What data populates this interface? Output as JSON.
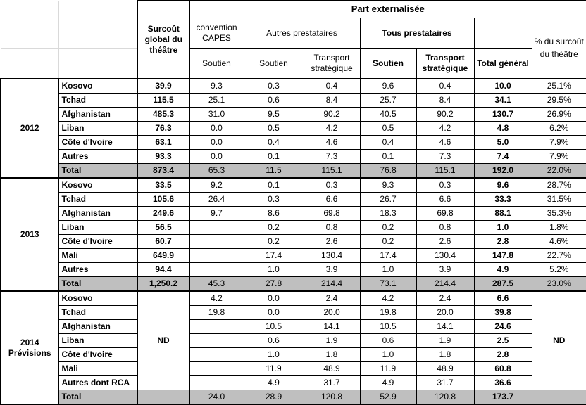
{
  "colors": {
    "total_row_bg": "#bfbfbf",
    "border_black": "#000000",
    "grid_light": "#d9d9d9"
  },
  "header": {
    "part_externalisee": "Part externalisée",
    "surcout_global": "Surcoût global du théâtre",
    "convention_capes": "convention CAPES",
    "autres_prestataires": "Autres prestataires",
    "tous_prestataires": "Tous prestataires",
    "soutien_capes": "Soutien",
    "soutien_autres": "Soutien",
    "transport_autres": "Transport stratégique",
    "soutien_tous": "Soutien",
    "transport_tous": "Transport stratégique",
    "total_general": "Total général",
    "pct_surcout": "% du surcoût du théâtre"
  },
  "blocks": [
    {
      "year": "2012",
      "rows": [
        {
          "label": "Kosovo",
          "cells": [
            "39.9",
            "9.3",
            "0.3",
            "0.4",
            "9.6",
            "0.4",
            "10.0",
            "25.1%"
          ]
        },
        {
          "label": "Tchad",
          "cells": [
            "115.5",
            "25.1",
            "0.6",
            "8.4",
            "25.7",
            "8.4",
            "34.1",
            "29.5%"
          ]
        },
        {
          "label": "Afghanistan",
          "cells": [
            "485.3",
            "31.0",
            "9.5",
            "90.2",
            "40.5",
            "90.2",
            "130.7",
            "26.9%"
          ]
        },
        {
          "label": "Liban",
          "cells": [
            "76.3",
            "0.0",
            "0.5",
            "4.2",
            "0.5",
            "4.2",
            "4.8",
            "6.2%"
          ]
        },
        {
          "label": "Côte d'Ivoire",
          "cells": [
            "63.1",
            "0.0",
            "0.4",
            "4.6",
            "0.4",
            "4.6",
            "5.0",
            "7.9%"
          ]
        },
        {
          "label": "Autres",
          "cells": [
            "93.3",
            "0.0",
            "0.1",
            "7.3",
            "0.1",
            "7.3",
            "7.4",
            "7.9%"
          ]
        },
        {
          "label": "Total",
          "is_total": true,
          "cells": [
            "873.4",
            "65.3",
            "11.5",
            "115.1",
            "76.8",
            "115.1",
            "192.0",
            "22.0%"
          ]
        }
      ]
    },
    {
      "year": "2013",
      "rows": [
        {
          "label": "Kosovo",
          "cells": [
            "33.5",
            "9.2",
            "0.1",
            "0.3",
            "9.3",
            "0.3",
            "9.6",
            "28.7%"
          ]
        },
        {
          "label": "Tchad",
          "cells": [
            "105.6",
            "26.4",
            "0.3",
            "6.6",
            "26.7",
            "6.6",
            "33.3",
            "31.5%"
          ]
        },
        {
          "label": "Afghanistan",
          "cells": [
            "249.6",
            "9.7",
            "8.6",
            "69.8",
            "18.3",
            "69.8",
            "88.1",
            "35.3%"
          ]
        },
        {
          "label": "Liban",
          "cells": [
            "56.5",
            "",
            "0.2",
            "0.8",
            "0.2",
            "0.8",
            "1.0",
            "1.8%"
          ]
        },
        {
          "label": "Côte d'Ivoire",
          "cells": [
            "60.7",
            "",
            "0.2",
            "2.6",
            "0.2",
            "2.6",
            "2.8",
            "4.6%"
          ]
        },
        {
          "label": "Mali",
          "cells": [
            "649.9",
            "",
            "17.4",
            "130.4",
            "17.4",
            "130.4",
            "147.8",
            "22.7%"
          ]
        },
        {
          "label": "Autres",
          "cells": [
            "94.4",
            "",
            "1.0",
            "3.9",
            "1.0",
            "3.9",
            "4.9",
            "5.2%"
          ]
        },
        {
          "label": "Total",
          "is_total": true,
          "cells": [
            "1,250.2",
            "45.3",
            "27.8",
            "214.4",
            "73.1",
            "214.4",
            "287.5",
            "23.0%"
          ]
        }
      ]
    },
    {
      "year": "2014\nPrévisions",
      "nd_surcout": "ND",
      "nd_pct": "ND",
      "rows": [
        {
          "label": "Kosovo",
          "cells": [
            null,
            "4.2",
            "0.0",
            "2.4",
            "4.2",
            "2.4",
            "6.6",
            null
          ]
        },
        {
          "label": "Tchad",
          "cells": [
            null,
            "19.8",
            "0.0",
            "20.0",
            "19.8",
            "20.0",
            "39.8",
            null
          ]
        },
        {
          "label": "Afghanistan",
          "cells": [
            null,
            "",
            "10.5",
            "14.1",
            "10.5",
            "14.1",
            "24.6",
            null
          ]
        },
        {
          "label": "Liban",
          "cells": [
            null,
            "",
            "0.6",
            "1.9",
            "0.6",
            "1.9",
            "2.5",
            null
          ]
        },
        {
          "label": "Côte d'Ivoire",
          "cells": [
            null,
            "",
            "1.0",
            "1.8",
            "1.0",
            "1.8",
            "2.8",
            null
          ]
        },
        {
          "label": "Mali",
          "cells": [
            null,
            "",
            "11.9",
            "48.9",
            "11.9",
            "48.9",
            "60.8",
            null
          ]
        },
        {
          "label": "Autres dont RCA",
          "cells": [
            null,
            "",
            "4.9",
            "31.7",
            "4.9",
            "31.7",
            "36.6",
            null
          ]
        },
        {
          "label": "Total",
          "is_total": true,
          "cells": [
            "",
            "24.0",
            "28.9",
            "120.8",
            "52.9",
            "120.8",
            "173.7",
            ""
          ]
        }
      ]
    }
  ]
}
